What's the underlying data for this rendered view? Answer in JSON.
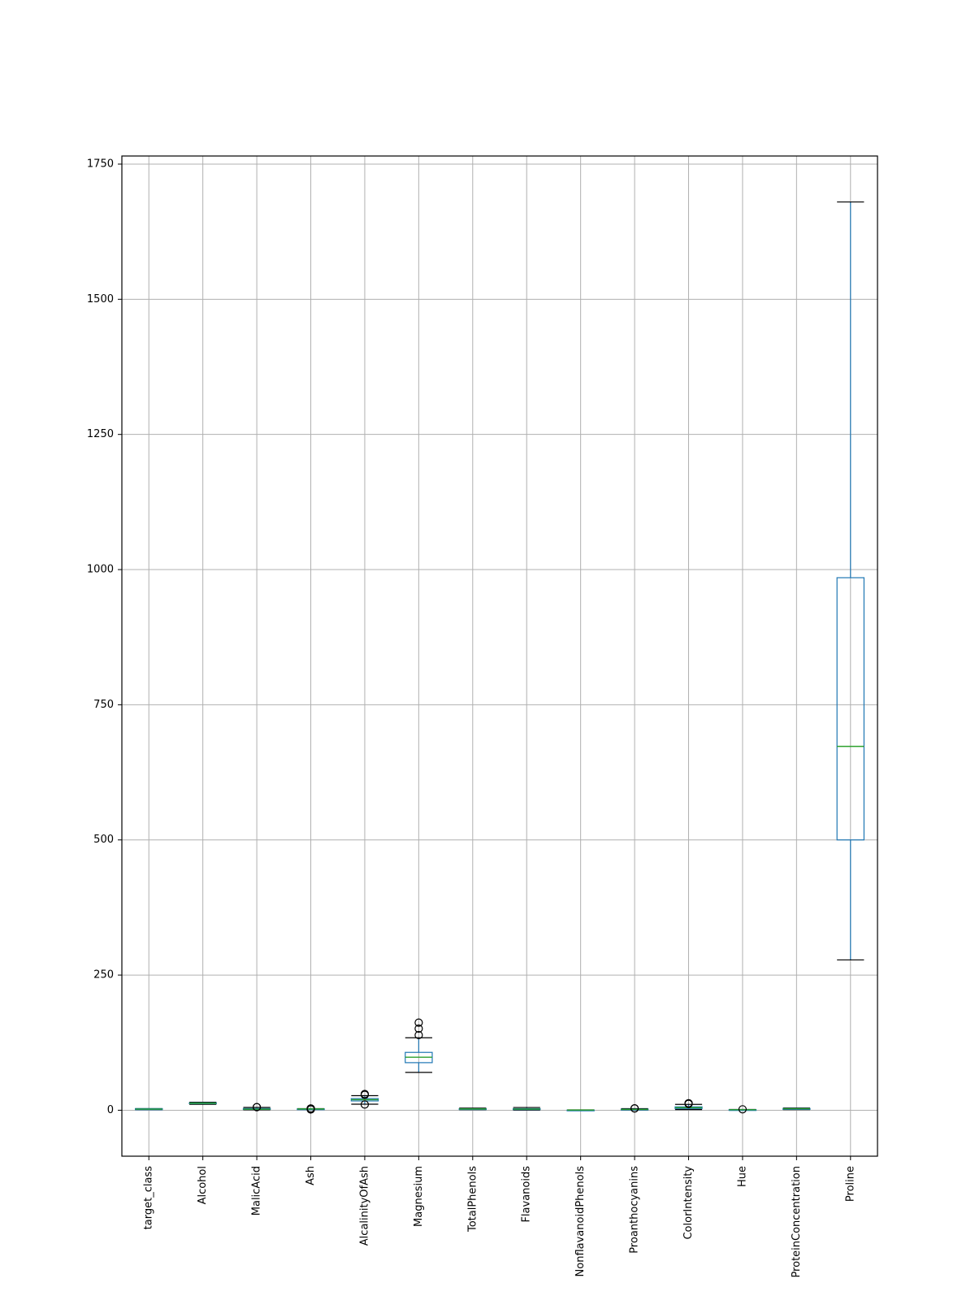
{
  "chart_data": {
    "type": "boxplot",
    "grid": true,
    "ylim": [
      -85,
      1765
    ],
    "y_ticks": [
      {
        "value": 0,
        "label": "0"
      },
      {
        "value": 250,
        "label": "250"
      },
      {
        "value": 500,
        "label": "500"
      },
      {
        "value": 750,
        "label": "750"
      },
      {
        "value": 1000,
        "label": "1000"
      },
      {
        "value": 1250,
        "label": "1250"
      },
      {
        "value": 1500,
        "label": "1500"
      },
      {
        "value": 1750,
        "label": "1750"
      }
    ],
    "boxes": [
      {
        "name": "target_class",
        "whislo": 1,
        "q1": 1,
        "med": 2,
        "q3": 3,
        "whishi": 3,
        "fliers": []
      },
      {
        "name": "Alcohol",
        "whislo": 11.03,
        "q1": 12.36,
        "med": 13.05,
        "q3": 13.68,
        "whishi": 14.83,
        "fliers": []
      },
      {
        "name": "MalicAcid",
        "whislo": 0.74,
        "q1": 1.6,
        "med": 1.87,
        "q3": 3.08,
        "whishi": 5.19,
        "fliers": [
          5.65,
          5.8
        ]
      },
      {
        "name": "Ash",
        "whislo": 1.7,
        "q1": 2.21,
        "med": 2.36,
        "q3": 2.56,
        "whishi": 3.0,
        "fliers": [
          1.36,
          3.22,
          3.23
        ]
      },
      {
        "name": "AlcalinityOfAsh",
        "whislo": 11.2,
        "q1": 17.2,
        "med": 19.5,
        "q3": 21.5,
        "whishi": 27.0,
        "fliers": [
          10.6,
          28.5,
          30.0
        ]
      },
      {
        "name": "Magnesium",
        "whislo": 70,
        "q1": 88,
        "med": 98,
        "q3": 107,
        "whishi": 134,
        "fliers": [
          139,
          151,
          162
        ]
      },
      {
        "name": "TotalPhenols",
        "whislo": 0.98,
        "q1": 1.74,
        "med": 2.36,
        "q3": 2.8,
        "whishi": 3.88,
        "fliers": []
      },
      {
        "name": "Flavanoids",
        "whislo": 0.34,
        "q1": 1.2,
        "med": 2.13,
        "q3": 2.88,
        "whishi": 5.08,
        "fliers": []
      },
      {
        "name": "NonflavanoidPhenols",
        "whislo": 0.13,
        "q1": 0.27,
        "med": 0.34,
        "q3": 0.44,
        "whishi": 0.66,
        "fliers": []
      },
      {
        "name": "Proanthocyanins",
        "whislo": 0.41,
        "q1": 1.25,
        "med": 1.56,
        "q3": 1.95,
        "whishi": 2.96,
        "fliers": [
          3.28,
          3.58
        ]
      },
      {
        "name": "ColorIntensity",
        "whislo": 1.28,
        "q1": 3.22,
        "med": 4.69,
        "q3": 6.2,
        "whishi": 10.8,
        "fliers": [
          11.75,
          13.0
        ]
      },
      {
        "name": "Hue",
        "whislo": 0.48,
        "q1": 0.78,
        "med": 0.97,
        "q3": 1.12,
        "whishi": 1.45,
        "fliers": [
          1.71
        ]
      },
      {
        "name": "ProteinConcentration",
        "whislo": 1.27,
        "q1": 1.94,
        "med": 2.78,
        "q3": 3.17,
        "whishi": 4.0,
        "fliers": []
      },
      {
        "name": "Proline",
        "whislo": 278,
        "q1": 500,
        "med": 673,
        "q3": 985,
        "whishi": 1680,
        "fliers": []
      }
    ],
    "colors": {
      "box": "#1f77b4",
      "median": "#2ca02c",
      "whisker_cap": "#000000",
      "flier": "#000000",
      "grid": "#b0b0b0",
      "frame": "#000000"
    }
  }
}
